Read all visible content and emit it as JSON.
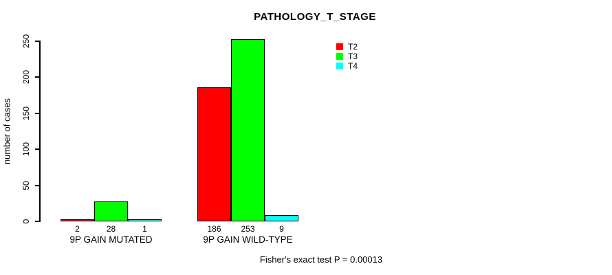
{
  "figure": {
    "title": "PATHOLOGY_T_STAGE",
    "footer": "Fisher's exact test P = 0.00013"
  },
  "chart_data": {
    "type": "bar",
    "title": "PATHOLOGY_T_STAGE",
    "xlabel": "",
    "ylabel": "number of cases",
    "ylim": [
      0,
      250
    ],
    "yticks": [
      0,
      50,
      100,
      150,
      200,
      250
    ],
    "grid": false,
    "legend_position": "top-right",
    "bar_border_color": "#000000",
    "background_color": "#ffffff",
    "categories": [
      "9P GAIN MUTATED",
      "9P GAIN WILD-TYPE"
    ],
    "series": [
      {
        "name": "T2",
        "color": "#ff0000",
        "values": [
          2,
          186
        ]
      },
      {
        "name": "T3",
        "color": "#00ff00",
        "values": [
          28,
          253
        ]
      },
      {
        "name": "T4",
        "color": "#00ffff",
        "values": [
          1,
          9
        ]
      }
    ],
    "bar_value_labels": [
      [
        "2",
        "28",
        "1"
      ],
      [
        "186",
        "253",
        "9"
      ]
    ],
    "annotation": "Fisher's exact test P = 0.00013"
  }
}
